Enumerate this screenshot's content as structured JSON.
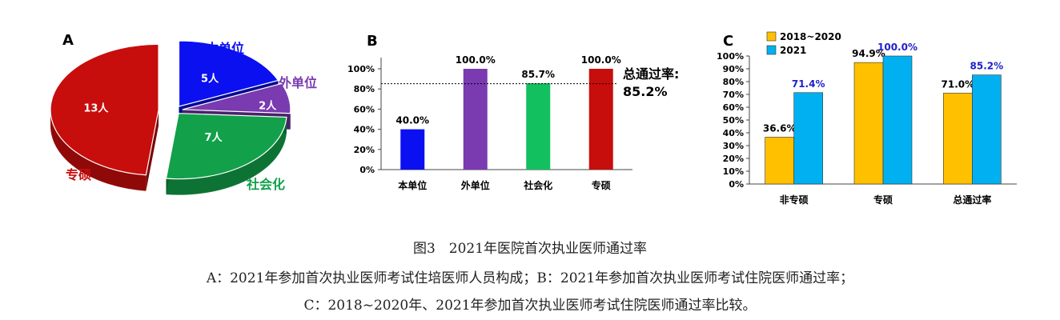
{
  "chart_data": [
    {
      "panel": "A",
      "type": "pie",
      "slices": [
        {
          "label": "本单位",
          "value": 5,
          "value_label": "5人",
          "color": "#0a10f0"
        },
        {
          "label": "外单位",
          "value": 2,
          "value_label": "2人",
          "color": "#7a3ab0"
        },
        {
          "label": "社会化",
          "value": 7,
          "value_label": "7人",
          "color": "#12a04a"
        },
        {
          "label": "专硕",
          "value": 13,
          "value_label": "13人",
          "color": "#c80d0d"
        }
      ]
    },
    {
      "panel": "B",
      "type": "bar",
      "categories": [
        "本单位",
        "外单位",
        "社会化",
        "专硕"
      ],
      "values": [
        40.0,
        100.0,
        85.7,
        100.0
      ],
      "value_labels": [
        "40.0%",
        "100.0%",
        "85.7%",
        "100.0%"
      ],
      "colors": [
        "#0a10f0",
        "#7a3ab0",
        "#12c060",
        "#c80d0d"
      ],
      "ylim": [
        0,
        100
      ],
      "yticks": [
        "0%",
        "20%",
        "40%",
        "60%",
        "80%",
        "100%"
      ],
      "reference": {
        "value": 85.2,
        "label": "总通过率:",
        "value_label": "85.2%"
      }
    },
    {
      "panel": "C",
      "type": "bar",
      "categories": [
        "非专硕",
        "专硕",
        "总通过率"
      ],
      "series": [
        {
          "name": "2018~2020",
          "values": [
            36.6,
            94.9,
            71.0
          ],
          "labels": [
            "36.6%",
            "94.9%",
            "71.0%"
          ],
          "color": "#ffc000"
        },
        {
          "name": "2021",
          "values": [
            71.4,
            100.0,
            85.2
          ],
          "labels": [
            "71.4%",
            "100.0%",
            "85.2%"
          ],
          "color": "#00b0f0"
        }
      ],
      "label_colors": [
        "#000000",
        "#1f1fc8"
      ],
      "ylim": [
        0,
        100
      ],
      "yticks": [
        "0%",
        "10%",
        "20%",
        "30%",
        "40%",
        "50%",
        "60%",
        "70%",
        "80%",
        "90%",
        "100%"
      ],
      "legend": "top-left"
    }
  ],
  "caption": {
    "title": "图3　2021年医院首次执业医师通过率",
    "line1": "A：2021年参加首次执业医师考试住培医师人员构成；B：2021年参加首次执业医师考试住院医师通过率；",
    "line2": "C：2018~2020年、2021年参加首次执业医师考试住院医师通过率比较。"
  }
}
